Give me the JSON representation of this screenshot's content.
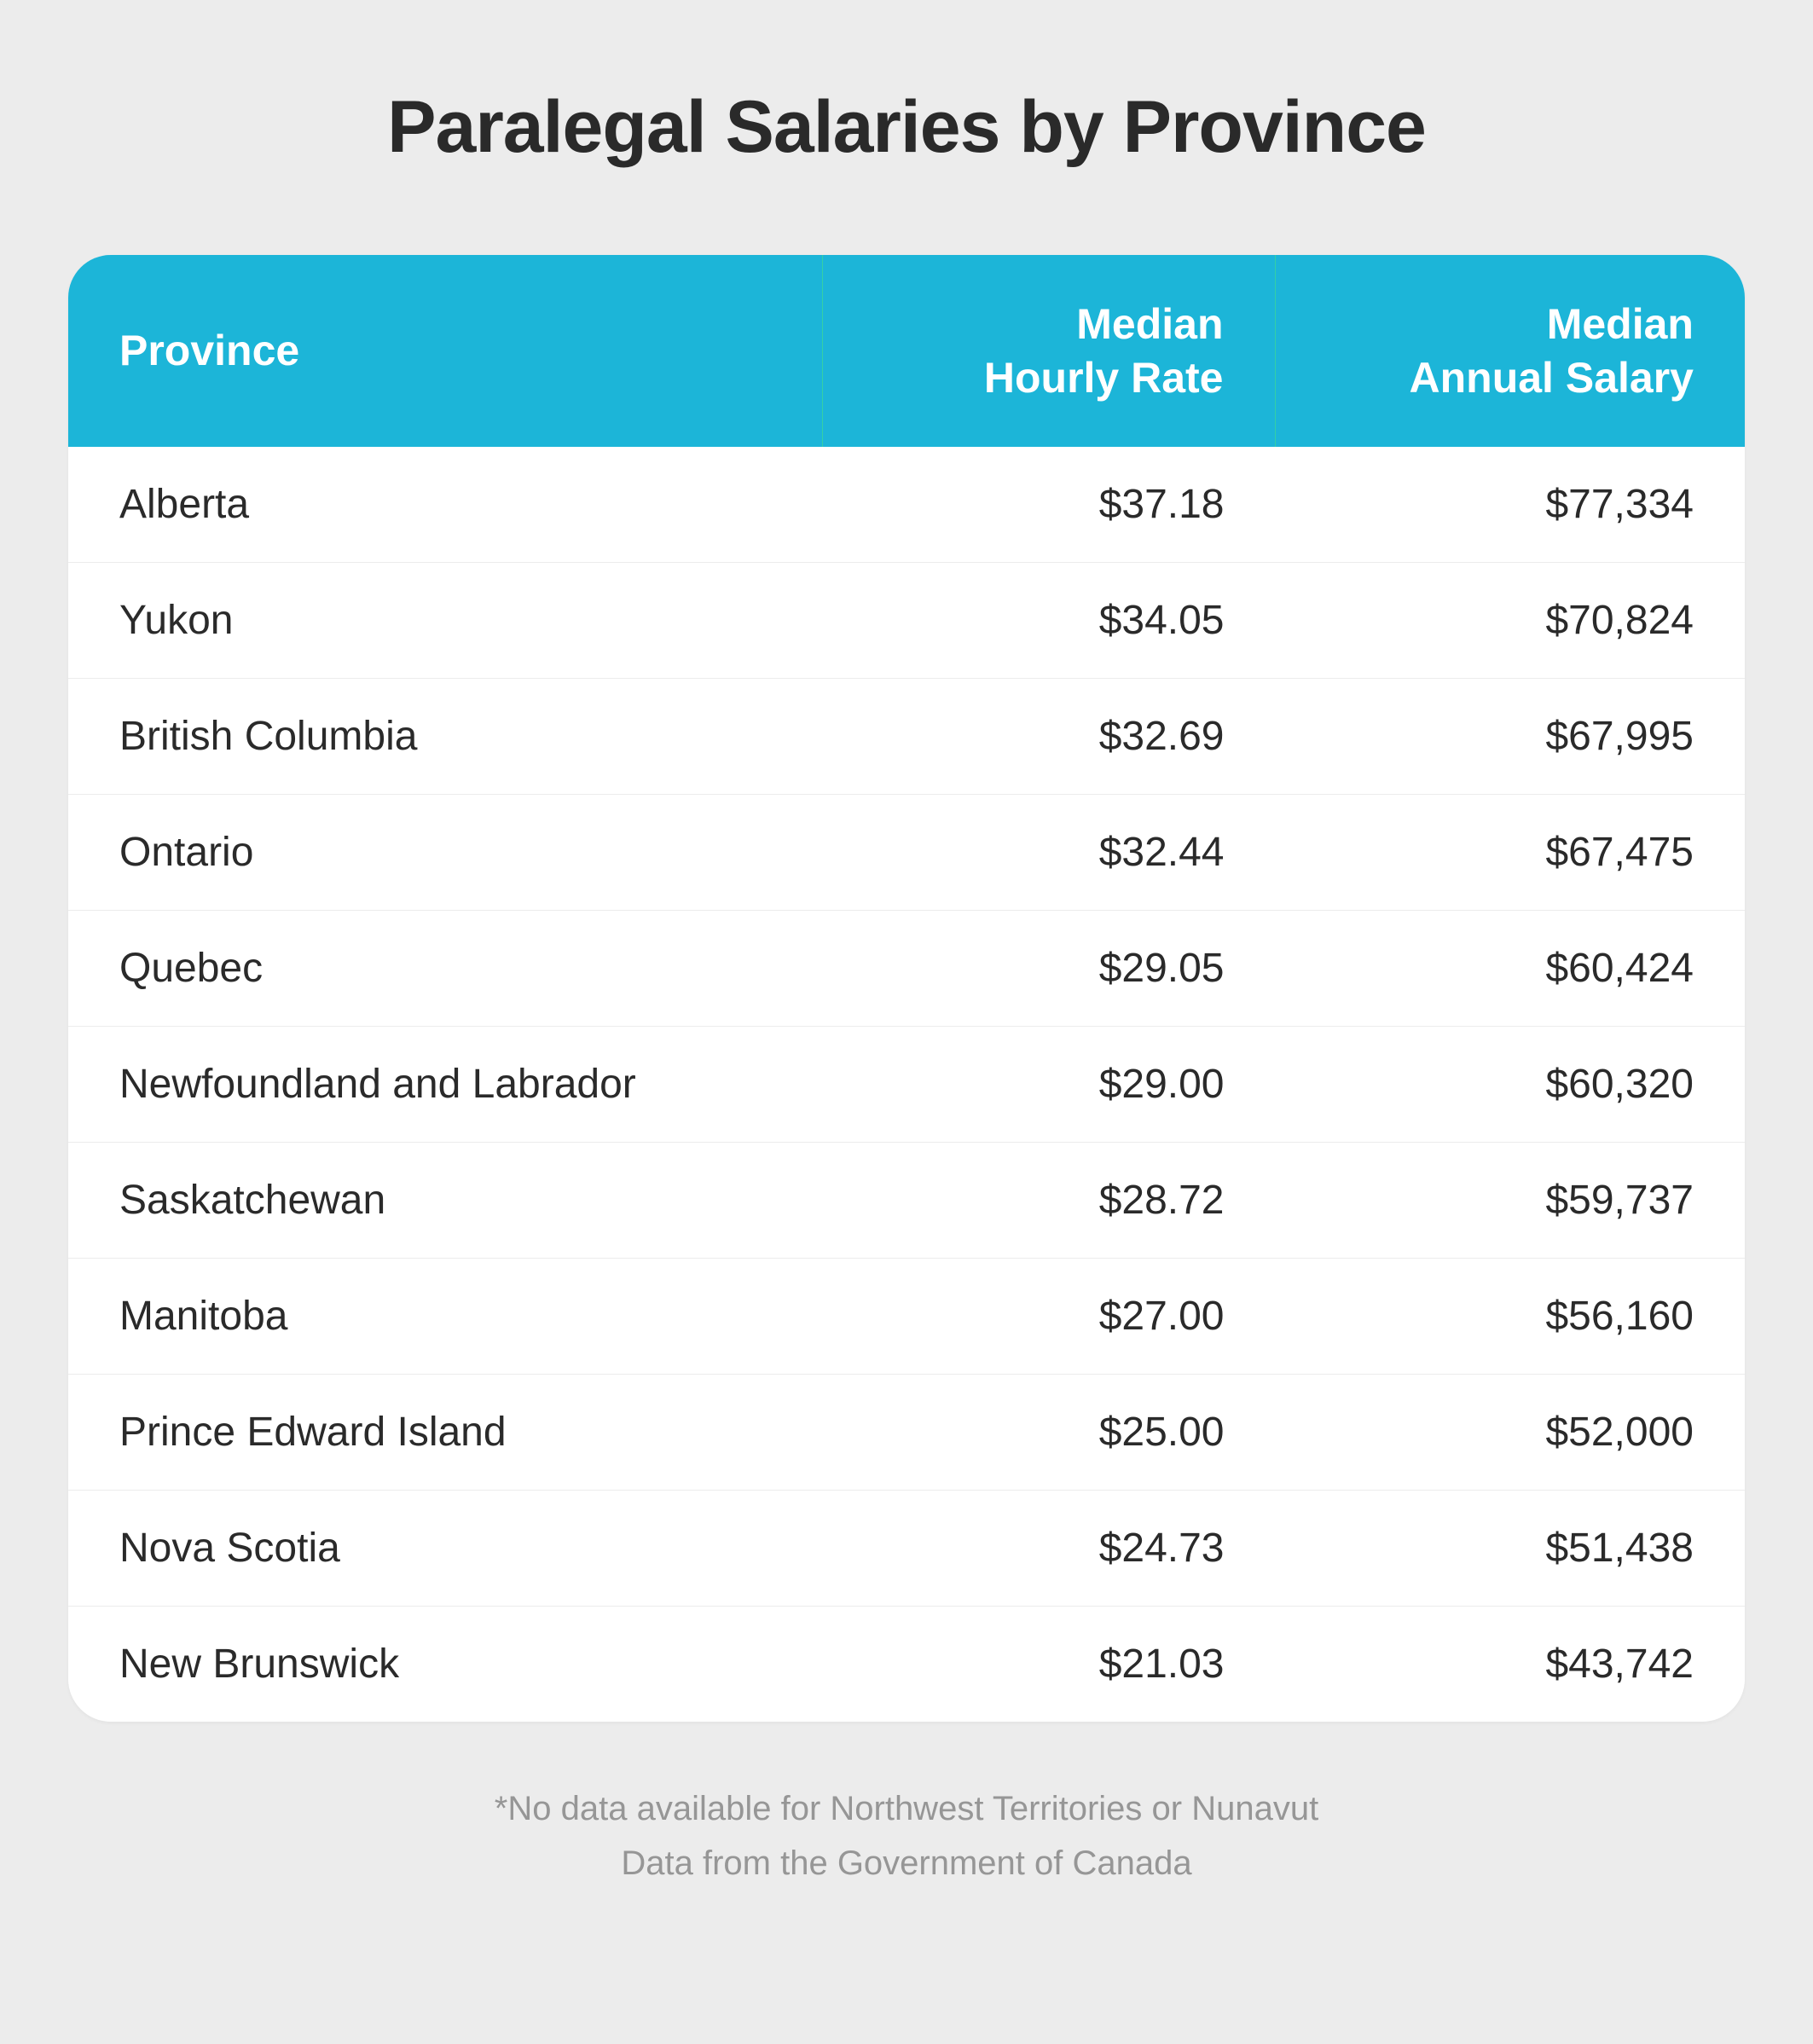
{
  "title": "Paralegal Salaries by Province",
  "table": {
    "type": "table",
    "header_bg": "#1cb5d8",
    "header_divider": "#34d0a6",
    "header_text_color": "#ffffff",
    "row_bg": "#ffffff",
    "row_border": "#ececec",
    "text_color": "#2a2a2a",
    "border_radius": 50,
    "columns": {
      "province": "Province",
      "hourly_l1": "Median",
      "hourly_l2": "Hourly Rate",
      "annual_l1": "Median",
      "annual_l2": "Annual Salary"
    },
    "font_size_header": 50,
    "font_size_body": 48,
    "rows": [
      {
        "province": "Alberta",
        "hourly": "$37.18",
        "annual": "$77,334"
      },
      {
        "province": "Yukon",
        "hourly": "$34.05",
        "annual": "$70,824"
      },
      {
        "province": "British Columbia",
        "hourly": "$32.69",
        "annual": "$67,995"
      },
      {
        "province": "Ontario",
        "hourly": "$32.44",
        "annual": "$67,475"
      },
      {
        "province": "Quebec",
        "hourly": "$29.05",
        "annual": "$60,424"
      },
      {
        "province": "Newfoundland and Labrador",
        "hourly": "$29.00",
        "annual": "$60,320"
      },
      {
        "province": "Saskatchewan",
        "hourly": "$28.72",
        "annual": "$59,737"
      },
      {
        "province": "Manitoba",
        "hourly": "$27.00",
        "annual": "$56,160"
      },
      {
        "province": "Prince Edward Island",
        "hourly": "$25.00",
        "annual": "$52,000"
      },
      {
        "province": "Nova Scotia",
        "hourly": "$24.73",
        "annual": "$51,438"
      },
      {
        "province": "New Brunswick",
        "hourly": "$21.03",
        "annual": "$43,742"
      }
    ]
  },
  "footer": {
    "line1": "*No data available for Northwest Territories or Nunavut",
    "line2": "Data from the Government of Canada",
    "color": "#969696",
    "font_size": 40
  },
  "page": {
    "background_color": "#ececec",
    "title_color": "#2a2a2a",
    "title_font_size": 86
  }
}
